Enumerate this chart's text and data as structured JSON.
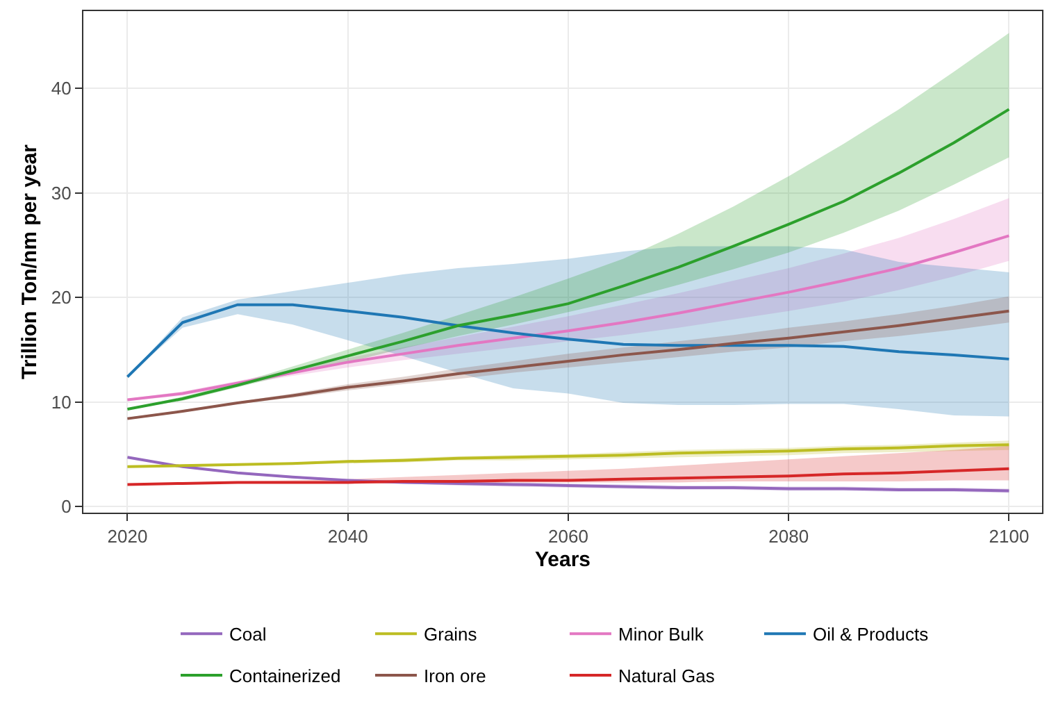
{
  "chart_data": {
    "type": "line",
    "xlabel": "Years",
    "ylabel": "Trillion Ton/nm per year",
    "x": [
      2020,
      2025,
      2030,
      2035,
      2040,
      2045,
      2050,
      2055,
      2060,
      2065,
      2070,
      2075,
      2080,
      2085,
      2090,
      2095,
      2100
    ],
    "xlim": [
      2016,
      2103
    ],
    "xticks": [
      2020,
      2040,
      2060,
      2080,
      2100
    ],
    "ylim": [
      -0.6,
      47.4
    ],
    "yticks": [
      0,
      10,
      20,
      30,
      40
    ],
    "grid": true,
    "legend": "bottom",
    "marker": "none",
    "line_style": "solid",
    "series": [
      {
        "name": "Coal",
        "color": "#9467bd",
        "values": [
          4.7,
          3.8,
          3.2,
          2.8,
          2.5,
          2.3,
          2.2,
          2.1,
          2.0,
          1.9,
          1.8,
          1.8,
          1.7,
          1.7,
          1.6,
          1.6,
          1.5
        ],
        "lower": [
          4.7,
          3.7,
          3.1,
          2.7,
          2.4,
          2.2,
          2.0,
          1.9,
          1.8,
          1.7,
          1.6,
          1.6,
          1.5,
          1.5,
          1.4,
          1.4,
          1.3
        ],
        "upper": [
          4.7,
          3.9,
          3.3,
          2.9,
          2.6,
          2.4,
          2.4,
          2.3,
          2.2,
          2.1,
          2.0,
          2.0,
          1.9,
          1.9,
          1.8,
          1.8,
          1.7
        ]
      },
      {
        "name": "Grains",
        "color": "#bcbd22",
        "values": [
          3.8,
          3.9,
          4.0,
          4.1,
          4.3,
          4.4,
          4.6,
          4.7,
          4.8,
          4.9,
          5.1,
          5.2,
          5.3,
          5.5,
          5.6,
          5.8,
          5.9
        ],
        "lower": [
          3.7,
          3.8,
          3.9,
          4.0,
          4.1,
          4.2,
          4.4,
          4.4,
          4.5,
          4.6,
          4.7,
          4.8,
          4.9,
          5.1,
          5.2,
          5.3,
          5.4
        ],
        "upper": [
          3.9,
          4.0,
          4.1,
          4.2,
          4.4,
          4.6,
          4.8,
          4.9,
          5.0,
          5.2,
          5.4,
          5.5,
          5.6,
          5.8,
          5.9,
          6.1,
          6.3
        ]
      },
      {
        "name": "Minor Bulk",
        "color": "#e377c2",
        "values": [
          10.2,
          10.8,
          11.8,
          12.8,
          13.8,
          14.6,
          15.4,
          16.1,
          16.8,
          17.6,
          18.5,
          19.5,
          20.5,
          21.6,
          22.8,
          24.3,
          25.9
        ],
        "lower": [
          10.1,
          10.6,
          11.6,
          12.5,
          13.3,
          14.0,
          14.6,
          15.2,
          15.8,
          16.4,
          17.1,
          17.9,
          18.7,
          19.6,
          20.7,
          22.0,
          23.5
        ],
        "upper": [
          10.3,
          11.0,
          12.0,
          13.1,
          14.2,
          15.2,
          16.2,
          17.2,
          18.2,
          19.3,
          20.4,
          21.6,
          22.8,
          24.2,
          25.7,
          27.5,
          29.5
        ]
      },
      {
        "name": "Oil & Products",
        "color": "#1f77b4",
        "values": [
          12.4,
          17.6,
          19.3,
          19.3,
          18.7,
          18.1,
          17.3,
          16.6,
          16.0,
          15.5,
          15.4,
          15.4,
          15.4,
          15.3,
          14.8,
          14.5,
          14.1
        ],
        "lower": [
          12.4,
          17.1,
          18.4,
          17.4,
          15.9,
          14.4,
          12.8,
          11.3,
          10.8,
          9.9,
          9.7,
          9.7,
          9.8,
          9.8,
          9.3,
          8.7,
          8.6
        ],
        "upper": [
          12.4,
          18.1,
          19.8,
          20.6,
          21.4,
          22.2,
          22.8,
          23.2,
          23.7,
          24.4,
          24.9,
          24.9,
          24.9,
          24.6,
          23.4,
          22.9,
          22.4
        ]
      },
      {
        "name": "Containerized",
        "color": "#2ca02c",
        "values": [
          9.3,
          10.3,
          11.6,
          13.0,
          14.4,
          15.8,
          17.3,
          18.3,
          19.4,
          21.1,
          22.9,
          24.9,
          27.0,
          29.2,
          31.9,
          34.8,
          38.0
        ],
        "lower": [
          9.3,
          10.1,
          11.4,
          12.7,
          13.8,
          15.1,
          16.3,
          17.4,
          18.6,
          19.8,
          21.2,
          22.7,
          24.3,
          26.2,
          28.3,
          30.8,
          33.4
        ],
        "upper": [
          9.3,
          10.5,
          11.8,
          13.4,
          15.0,
          16.6,
          18.3,
          20.0,
          21.8,
          23.7,
          26.1,
          28.7,
          31.6,
          34.7,
          38.0,
          41.6,
          45.3
        ]
      },
      {
        "name": "Iron ore",
        "color": "#8c564b",
        "values": [
          8.4,
          9.1,
          9.9,
          10.6,
          11.4,
          12.0,
          12.7,
          13.3,
          13.9,
          14.5,
          15.0,
          15.6,
          16.1,
          16.7,
          17.3,
          18.0,
          18.7
        ],
        "lower": [
          8.3,
          9.0,
          9.8,
          10.4,
          11.1,
          11.7,
          12.2,
          12.8,
          13.3,
          13.8,
          14.3,
          14.8,
          15.2,
          15.8,
          16.3,
          16.9,
          17.6
        ],
        "upper": [
          8.5,
          9.2,
          10.0,
          10.8,
          11.7,
          12.4,
          13.2,
          13.9,
          14.6,
          15.2,
          15.8,
          16.4,
          17.1,
          17.7,
          18.4,
          19.2,
          20.1
        ]
      },
      {
        "name": "Natural Gas",
        "color": "#d62728",
        "values": [
          2.1,
          2.2,
          2.3,
          2.3,
          2.3,
          2.4,
          2.4,
          2.5,
          2.5,
          2.6,
          2.7,
          2.8,
          2.9,
          3.1,
          3.2,
          3.4,
          3.6
        ],
        "lower": [
          2.1,
          2.2,
          2.2,
          2.2,
          2.2,
          2.2,
          2.2,
          2.3,
          2.3,
          2.3,
          2.3,
          2.4,
          2.4,
          2.4,
          2.4,
          2.5,
          2.5
        ],
        "upper": [
          2.1,
          2.3,
          2.4,
          2.5,
          2.6,
          2.8,
          3.0,
          3.2,
          3.4,
          3.6,
          3.9,
          4.2,
          4.5,
          4.8,
          5.1,
          5.4,
          5.8
        ]
      }
    ]
  }
}
